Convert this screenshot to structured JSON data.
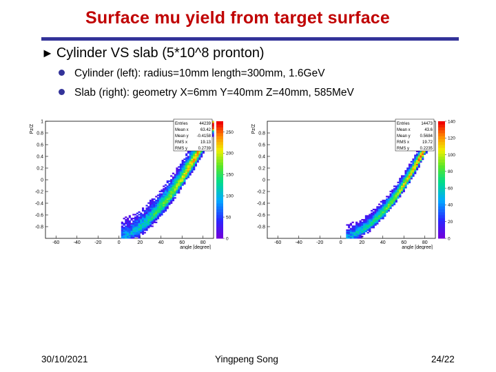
{
  "slide": {
    "title": "Surface mu yield from target surface",
    "heading": "Cylinder VS slab (5*10^8 pronton)",
    "bullets": [
      "Cylinder (left):  radius=10mm length=300mm, 1.6GeV",
      "Slab (right): geometry   X=6mm Y=40mm Z=40mm,  585MeV"
    ],
    "footer": {
      "date": "30/10/2021",
      "author": "Yingpeng Song",
      "page": "24/22"
    }
  },
  "chart_data": [
    {
      "type": "heatmap",
      "title": "",
      "xlabel": "angle [degree]",
      "ylabel": "Pz/Z",
      "xlim": [
        -70,
        90
      ],
      "ylim": [
        -1,
        1
      ],
      "xticks": [
        -60,
        -40,
        -20,
        0,
        20,
        40,
        60,
        80
      ],
      "yticks": [
        -0.8,
        -0.6,
        -0.4,
        -0.2,
        0,
        0.2,
        0.4,
        0.6,
        0.8,
        1
      ],
      "colorbar": {
        "min": 0,
        "max": 275,
        "ticks": [
          0,
          50,
          100,
          150,
          200,
          250
        ]
      },
      "stats": [
        {
          "label": "Entries",
          "value": "44239"
        },
        {
          "label": "Mean x",
          "value": "63.42"
        },
        {
          "label": "Mean y",
          "value": "-0.4158"
        },
        {
          "label": "RMS x",
          "value": "19.13"
        },
        {
          "label": "RMS y",
          "value": "0.2739"
        }
      ]
    },
    {
      "type": "heatmap",
      "title": "",
      "xlabel": "angle [degree]",
      "ylabel": "Pz/Z",
      "xlim": [
        -70,
        90
      ],
      "ylim": [
        -1,
        1
      ],
      "xticks": [
        -60,
        -40,
        -20,
        0,
        20,
        40,
        60,
        80
      ],
      "yticks": [
        -0.8,
        -0.6,
        -0.4,
        -0.2,
        0,
        0.2,
        0.4,
        0.6,
        0.8
      ],
      "colorbar": {
        "min": 0,
        "max": 140,
        "ticks": [
          0,
          20,
          40,
          60,
          80,
          100,
          120,
          140
        ]
      },
      "stats": [
        {
          "label": "Entries",
          "value": "14473"
        },
        {
          "label": "Mean x",
          "value": "43.6"
        },
        {
          "label": "Mean y",
          "value": "0.5684"
        },
        {
          "label": "RMS x",
          "value": "19.72"
        },
        {
          "label": "RMS y",
          "value": "0.2235"
        }
      ]
    }
  ]
}
